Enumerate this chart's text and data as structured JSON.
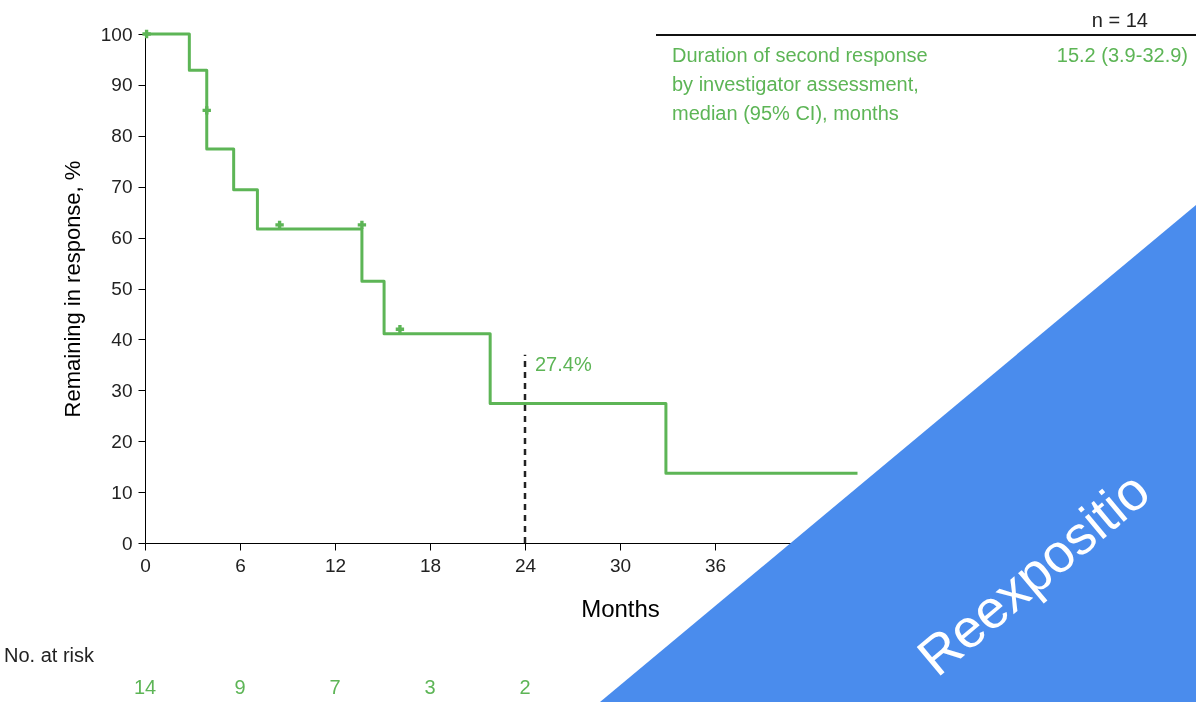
{
  "chart_data": {
    "type": "step",
    "xlabel": "Months",
    "ylabel": "Remaining in response, %",
    "xlim": [
      0,
      60
    ],
    "xticks": [
      0,
      6,
      12,
      18,
      24,
      30,
      36
    ],
    "ylim": [
      0,
      100
    ],
    "yticks": [
      0,
      10,
      20,
      30,
      40,
      50,
      60,
      70,
      80,
      90,
      100
    ],
    "grid": false,
    "series": [
      {
        "color": "#5db556",
        "x": [
          0,
          2.8,
          3.9,
          5.6,
          7.1,
          13.7,
          15.1,
          21.8,
          32.9,
          45
        ],
        "values": [
          100,
          92.9,
          77.4,
          69.4,
          61.7,
          51.4,
          41.1,
          27.4,
          13.7,
          13.7
        ]
      },
      {
        "type": "scatter",
        "marker": "cross",
        "color": "#5db556",
        "x": [
          0.1,
          3.9,
          8.5,
          13.7,
          16.1
        ],
        "values": [
          100,
          85,
          62.5,
          62.5,
          42
        ]
      }
    ],
    "ref_lines": [
      {
        "axis": "x",
        "value": 24,
        "line_style": "dashed",
        "color": "#222222"
      }
    ],
    "annotations": [
      "n = 14",
      "Duration of second response\nby investigator assessment,\nmedian (95% CI), months",
      "15.2 (3.9-32.9)",
      "No. at risk",
      "Reexpositio",
      "14",
      "9",
      "7",
      "3",
      "2",
      {
        "text": "27.4%",
        "x": 24,
        "y": 35
      }
    ]
  }
}
